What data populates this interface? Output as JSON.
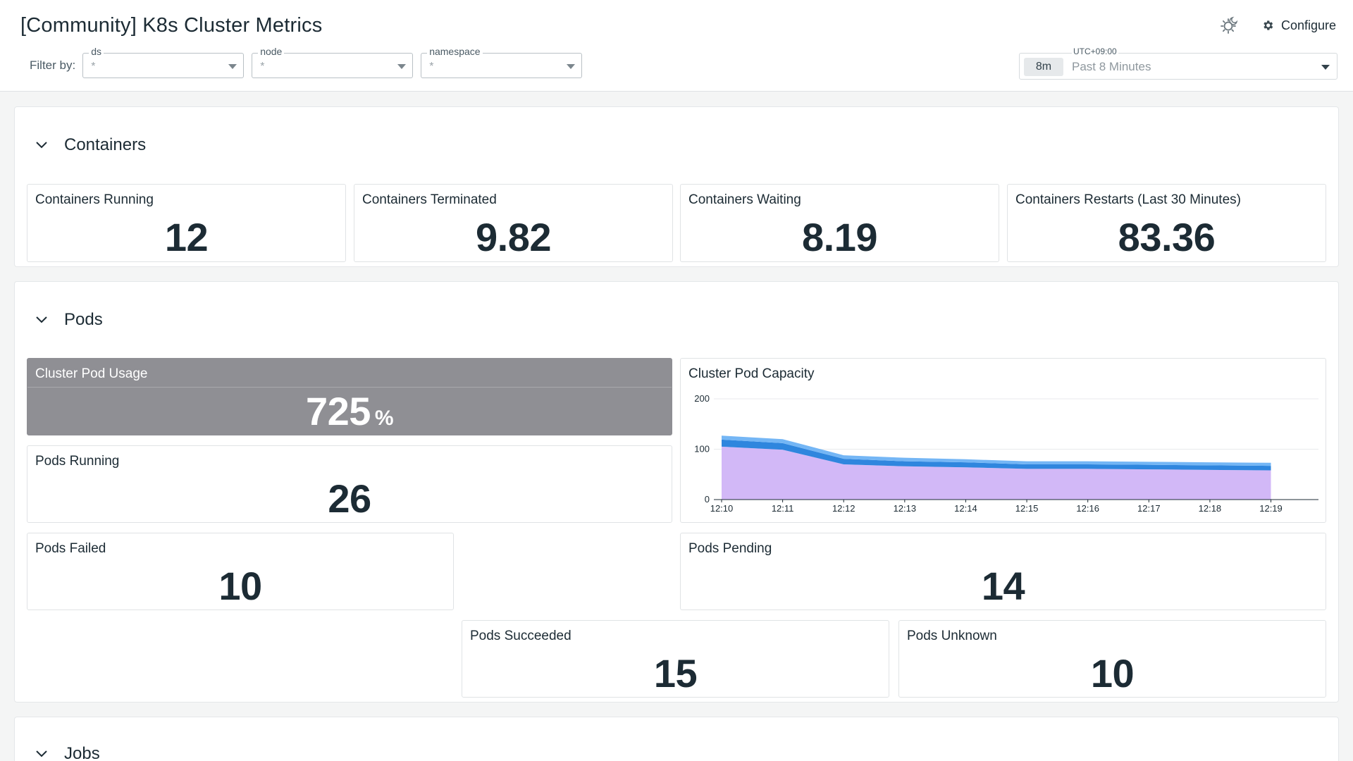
{
  "header": {
    "title": "[Community] K8s Cluster Metrics",
    "configure_label": "Configure",
    "filter_label": "Filter by:",
    "filters": [
      {
        "name": "ds",
        "value": "*"
      },
      {
        "name": "node",
        "value": "*"
      },
      {
        "name": "namespace",
        "value": "*"
      }
    ],
    "time": {
      "timezone": "UTC+09:00",
      "badge": "8m",
      "range": "Past 8 Minutes"
    },
    "icons": {
      "theme": "sun-moon-icon",
      "configure": "gear-icon"
    }
  },
  "sections": {
    "containers": {
      "label": "Containers",
      "widgets": [
        {
          "title": "Containers Running",
          "value": "12"
        },
        {
          "title": "Containers Terminated",
          "value": "9.82"
        },
        {
          "title": "Containers Waiting",
          "value": "8.19"
        },
        {
          "title": "Containers Restarts (Last 30 Minutes)",
          "value": "83.36"
        }
      ]
    },
    "pods": {
      "label": "Pods",
      "usage": {
        "title": "Cluster Pod Usage",
        "value": "725",
        "unit": "%"
      },
      "capacity_title": "Cluster Pod Capacity",
      "running": {
        "title": "Pods Running",
        "value": "26"
      },
      "failed": {
        "title": "Pods Failed",
        "value": "10"
      },
      "pending": {
        "title": "Pods Pending",
        "value": "14"
      },
      "succeeded": {
        "title": "Pods Succeeded",
        "value": "15"
      },
      "unknown": {
        "title": "Pods Unknown",
        "value": "10"
      }
    },
    "jobs": {
      "label": "Jobs"
    }
  },
  "colors": {
    "usage_bg": "#8f8f94",
    "series_top": "#74b6f5",
    "series_mid": "#2f86de",
    "series_base": "#d2b8f7"
  },
  "chart_data": {
    "type": "area",
    "title": "Cluster Pod Capacity",
    "x": [
      "12:10",
      "12:11",
      "12:12",
      "12:13",
      "12:14",
      "12:15",
      "12:16",
      "12:17",
      "12:18",
      "12:19"
    ],
    "ylim": [
      0,
      200
    ],
    "yticks": [
      0,
      100,
      200
    ],
    "grid": true,
    "series": [
      {
        "values": [
          105,
          99,
          70,
          66,
          64,
          61,
          61,
          60,
          59,
          58
        ]
      },
      {
        "values": [
          14,
          13,
          11,
          10,
          10,
          9,
          9,
          9,
          9,
          9
        ]
      },
      {
        "values": [
          8,
          8,
          7,
          7,
          6,
          6,
          6,
          6,
          6,
          6
        ]
      }
    ]
  }
}
